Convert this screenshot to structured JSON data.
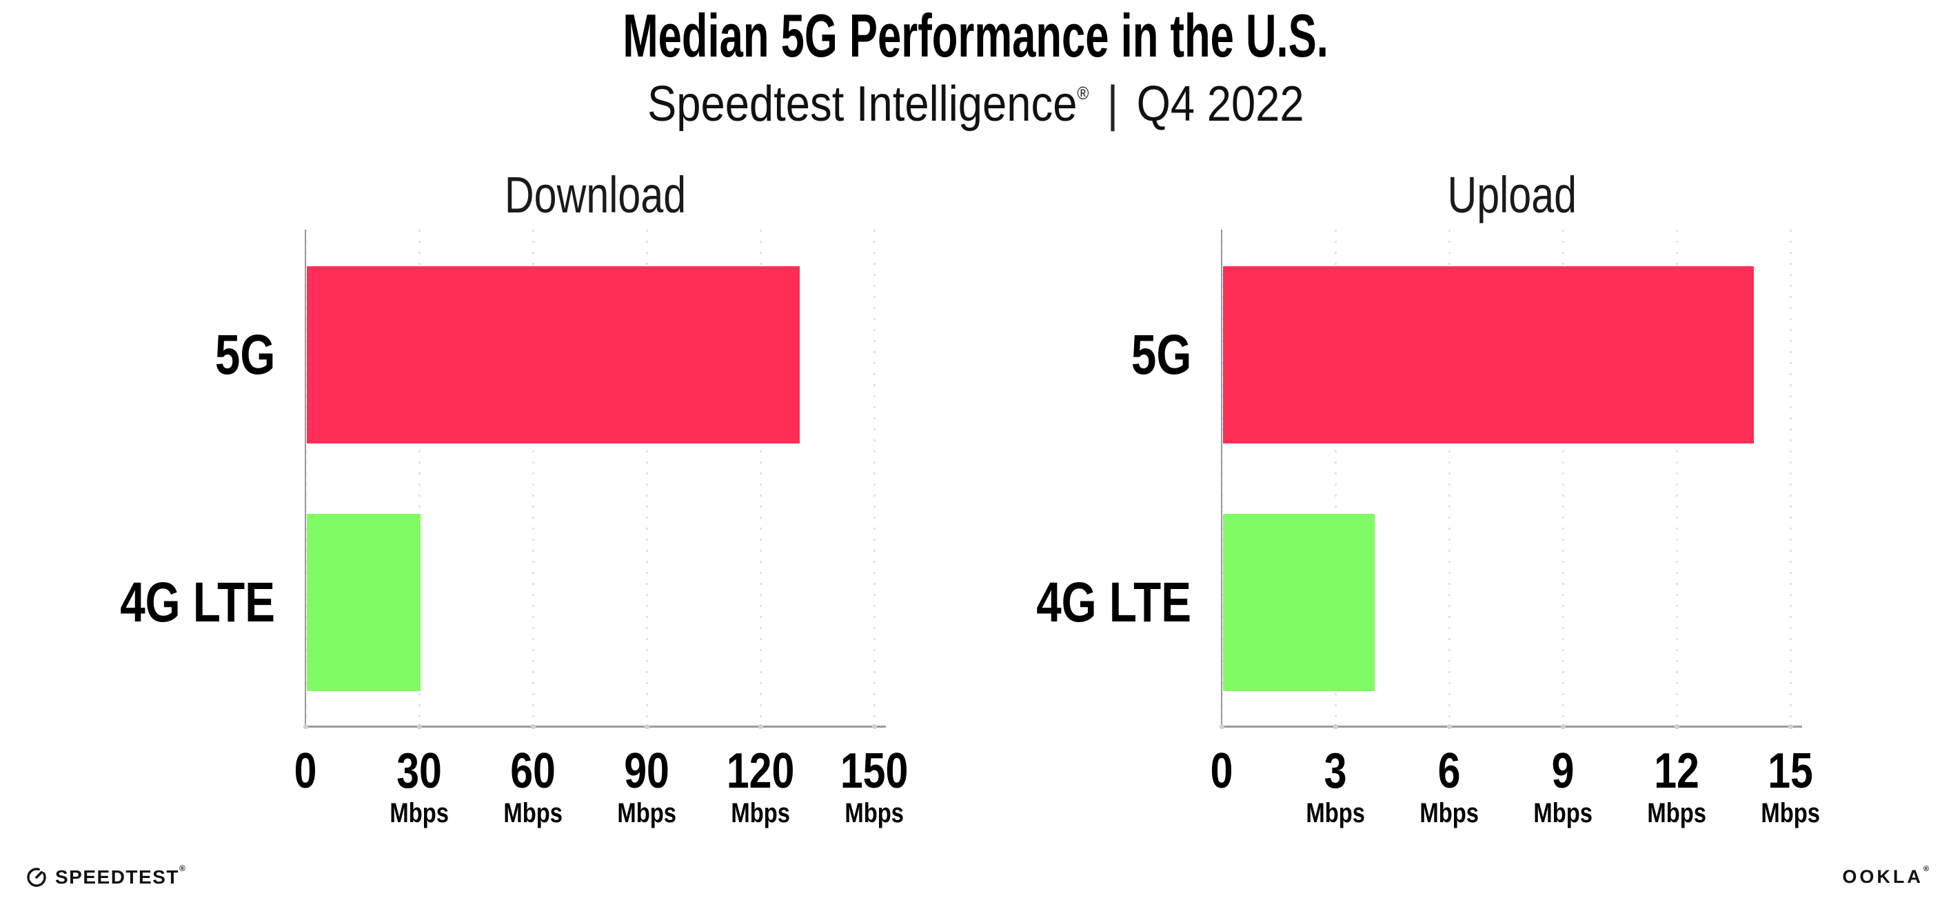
{
  "header": {
    "title": "Median 5G Performance in the U.S.",
    "subtitle_brand": "Speedtest Intelligence",
    "subtitle_reg": "®",
    "subtitle_sep": "|",
    "subtitle_period": "Q4 2022"
  },
  "footer": {
    "speedtest_label": "SPEEDTEST",
    "speedtest_reg": "®",
    "ookla_label": "OOKLA",
    "ookla_reg": "®"
  },
  "colors": {
    "bar_5g": "#ff2e56",
    "bar_4g_lte": "#7ffb63",
    "gridline": "#dfe1ec",
    "axis": "#9b9b9b",
    "tick_dot": "#ccd0dc",
    "text": "#000000"
  },
  "chart_data": [
    {
      "type": "bar",
      "orientation": "horizontal",
      "title": "Download",
      "categories": [
        "5G",
        "4G LTE"
      ],
      "values": [
        130,
        30
      ],
      "value_unit": "Mbps",
      "xlim": [
        0,
        150
      ],
      "xticks": [
        0,
        30,
        60,
        90,
        120,
        150
      ],
      "xtick_unit": "Mbps",
      "grid": "vertical-dotted",
      "legend": "none",
      "bar_colors": [
        "#ff2e56",
        "#7ffb63"
      ]
    },
    {
      "type": "bar",
      "orientation": "horizontal",
      "title": "Upload",
      "categories": [
        "5G",
        "4G LTE"
      ],
      "values": [
        14,
        4
      ],
      "value_unit": "Mbps",
      "xlim": [
        0,
        15
      ],
      "xticks": [
        0,
        3,
        6,
        9,
        12,
        15
      ],
      "xtick_unit": "Mbps",
      "grid": "vertical-dotted",
      "legend": "none",
      "bar_colors": [
        "#ff2e56",
        "#7ffb63"
      ]
    }
  ]
}
